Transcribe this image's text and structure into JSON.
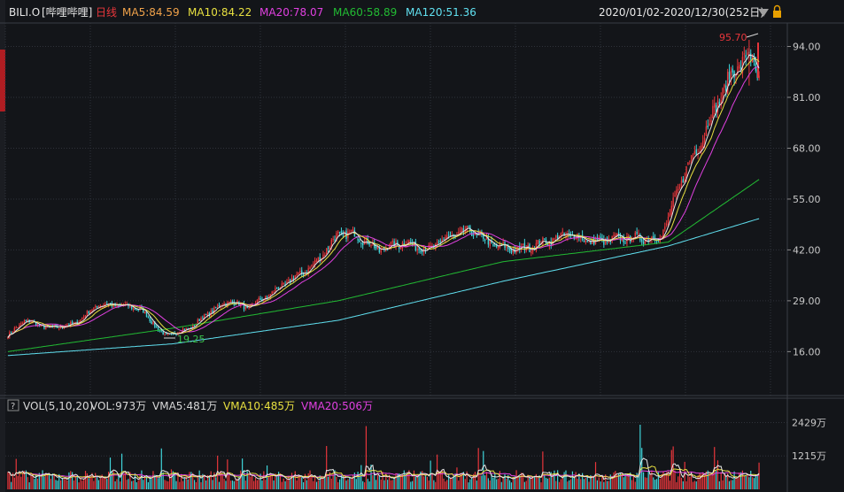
{
  "header": {
    "ticker": "BILI.O",
    "name": "[哔哩哔哩]",
    "period": "日线",
    "ma": [
      {
        "label": "MA5:84.59",
        "color": "#f0a24a"
      },
      {
        "label": "MA10:84.22",
        "color": "#e8e040"
      },
      {
        "label": "MA20:78.07",
        "color": "#e040e0"
      },
      {
        "label": "MA60:58.89",
        "color": "#22bb33"
      },
      {
        "label": "MA120:51.36",
        "color": "#60e0f0"
      }
    ],
    "range": "2020/01/02-2020/12/30(252日)"
  },
  "price_axis": {
    "ticks": [
      "94.00",
      "81.00",
      "68.00",
      "55.00",
      "42.00",
      "29.00",
      "16.00"
    ],
    "high_label": "95.70",
    "low_label": "19.25"
  },
  "volume_header": {
    "help": "?",
    "items": [
      {
        "label": "VOL(5,10,20)",
        "color": "#d8d8d8"
      },
      {
        "label": "VOL:973万",
        "color": "#d8d8d8"
      },
      {
        "label": "VMA5:481万",
        "color": "#d8d8d8"
      },
      {
        "label": "VMA10:485万",
        "color": "#e8e040"
      },
      {
        "label": "VMA20:506万",
        "color": "#e040e0"
      }
    ]
  },
  "volume_axis": {
    "ticks": [
      "2429万",
      "1215万"
    ]
  },
  "colors": {
    "up": "#e8363b",
    "down": "#3fd4d9",
    "grid": "#2f323a",
    "axis_text": "#c8c8c8"
  },
  "chart_data": {
    "type": "candlestick",
    "date_range": [
      "2020/01/02",
      "2020/12/30"
    ],
    "num_days": 252,
    "ylim": [
      5,
      100
    ],
    "high": 95.7,
    "low": 19.25,
    "series_shape": {
      "close": [
        [
          0,
          20
        ],
        [
          10,
          24
        ],
        [
          25,
          22
        ],
        [
          40,
          23
        ],
        [
          55,
          28
        ],
        [
          65,
          28
        ],
        [
          80,
          27
        ],
        [
          95,
          20
        ],
        [
          110,
          22
        ],
        [
          125,
          27
        ],
        [
          135,
          29
        ],
        [
          145,
          27
        ],
        [
          160,
          31
        ],
        [
          170,
          34
        ],
        [
          185,
          38
        ],
        [
          200,
          46
        ],
        [
          210,
          46
        ],
        [
          225,
          42
        ],
        [
          240,
          44
        ],
        [
          255,
          42
        ],
        [
          265,
          45
        ],
        [
          280,
          47
        ],
        [
          295,
          43
        ],
        [
          310,
          42
        ],
        [
          325,
          44
        ],
        [
          340,
          46
        ],
        [
          355,
          44
        ],
        [
          370,
          45
        ],
        [
          385,
          45
        ],
        [
          395,
          45
        ],
        [
          400,
          50
        ],
        [
          410,
          62
        ],
        [
          420,
          70
        ],
        [
          430,
          80
        ],
        [
          440,
          88
        ],
        [
          449,
          92
        ],
        [
          455,
          86
        ]
      ],
      "ma60": [
        [
          0,
          16
        ],
        [
          100,
          22
        ],
        [
          200,
          29
        ],
        [
          300,
          39
        ],
        [
          400,
          44
        ],
        [
          455,
          60
        ]
      ],
      "ma120": [
        [
          0,
          15
        ],
        [
          100,
          18
        ],
        [
          200,
          24
        ],
        [
          300,
          34
        ],
        [
          400,
          43
        ],
        [
          455,
          50
        ]
      ]
    },
    "volume_ylim": [
      0,
      2800
    ],
    "volume_last": 973,
    "vma5": 481,
    "vma10": 485,
    "vma20": 506
  }
}
